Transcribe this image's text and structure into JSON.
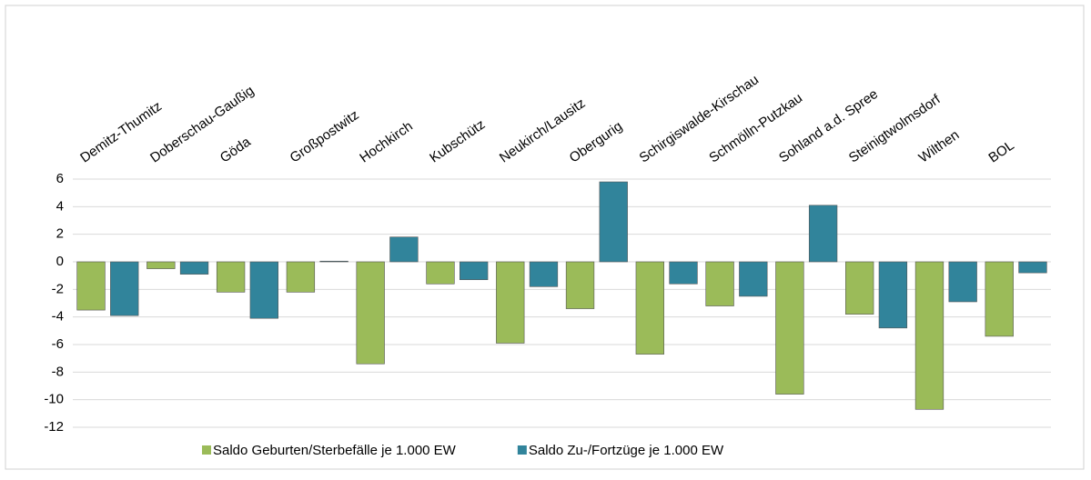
{
  "chart_data": {
    "type": "bar",
    "categories": [
      "Demitz-Thumitz",
      "Doberschau-Gaußig",
      "Göda",
      "Großpostwitz",
      "Hochkirch",
      "Kubschütz",
      "Neukirch/Lausitz",
      "Obergurig",
      "Schirgiswalde-Kirschau",
      "Schmölln-Putzkau",
      "Sohland a.d. Spree",
      "Steinigtwolmsdorf",
      "Wilthen",
      "BOL"
    ],
    "series": [
      {
        "name": "Saldo Geburten/Sterbefälle je 1.000 EW",
        "color": "#9bbb59",
        "values": [
          -3.5,
          -0.5,
          -2.2,
          -2.2,
          -7.4,
          -1.6,
          -5.9,
          -3.4,
          -6.7,
          -3.2,
          -9.6,
          -3.8,
          -10.7,
          -5.4
        ]
      },
      {
        "name": "Saldo Zu-/Fortzüge je 1.000 EW",
        "color": "#31849b",
        "values": [
          -3.9,
          -0.9,
          -4.1,
          0.05,
          1.8,
          -1.3,
          -1.8,
          5.8,
          -1.6,
          -2.5,
          4.1,
          -4.8,
          -2.9,
          -0.8
        ]
      }
    ],
    "ylim": [
      -12,
      6
    ],
    "yticks": [
      -12,
      -10,
      -8,
      -6,
      -4,
      -2,
      0,
      2,
      4,
      6
    ],
    "grid": true,
    "legend": "bottom"
  }
}
